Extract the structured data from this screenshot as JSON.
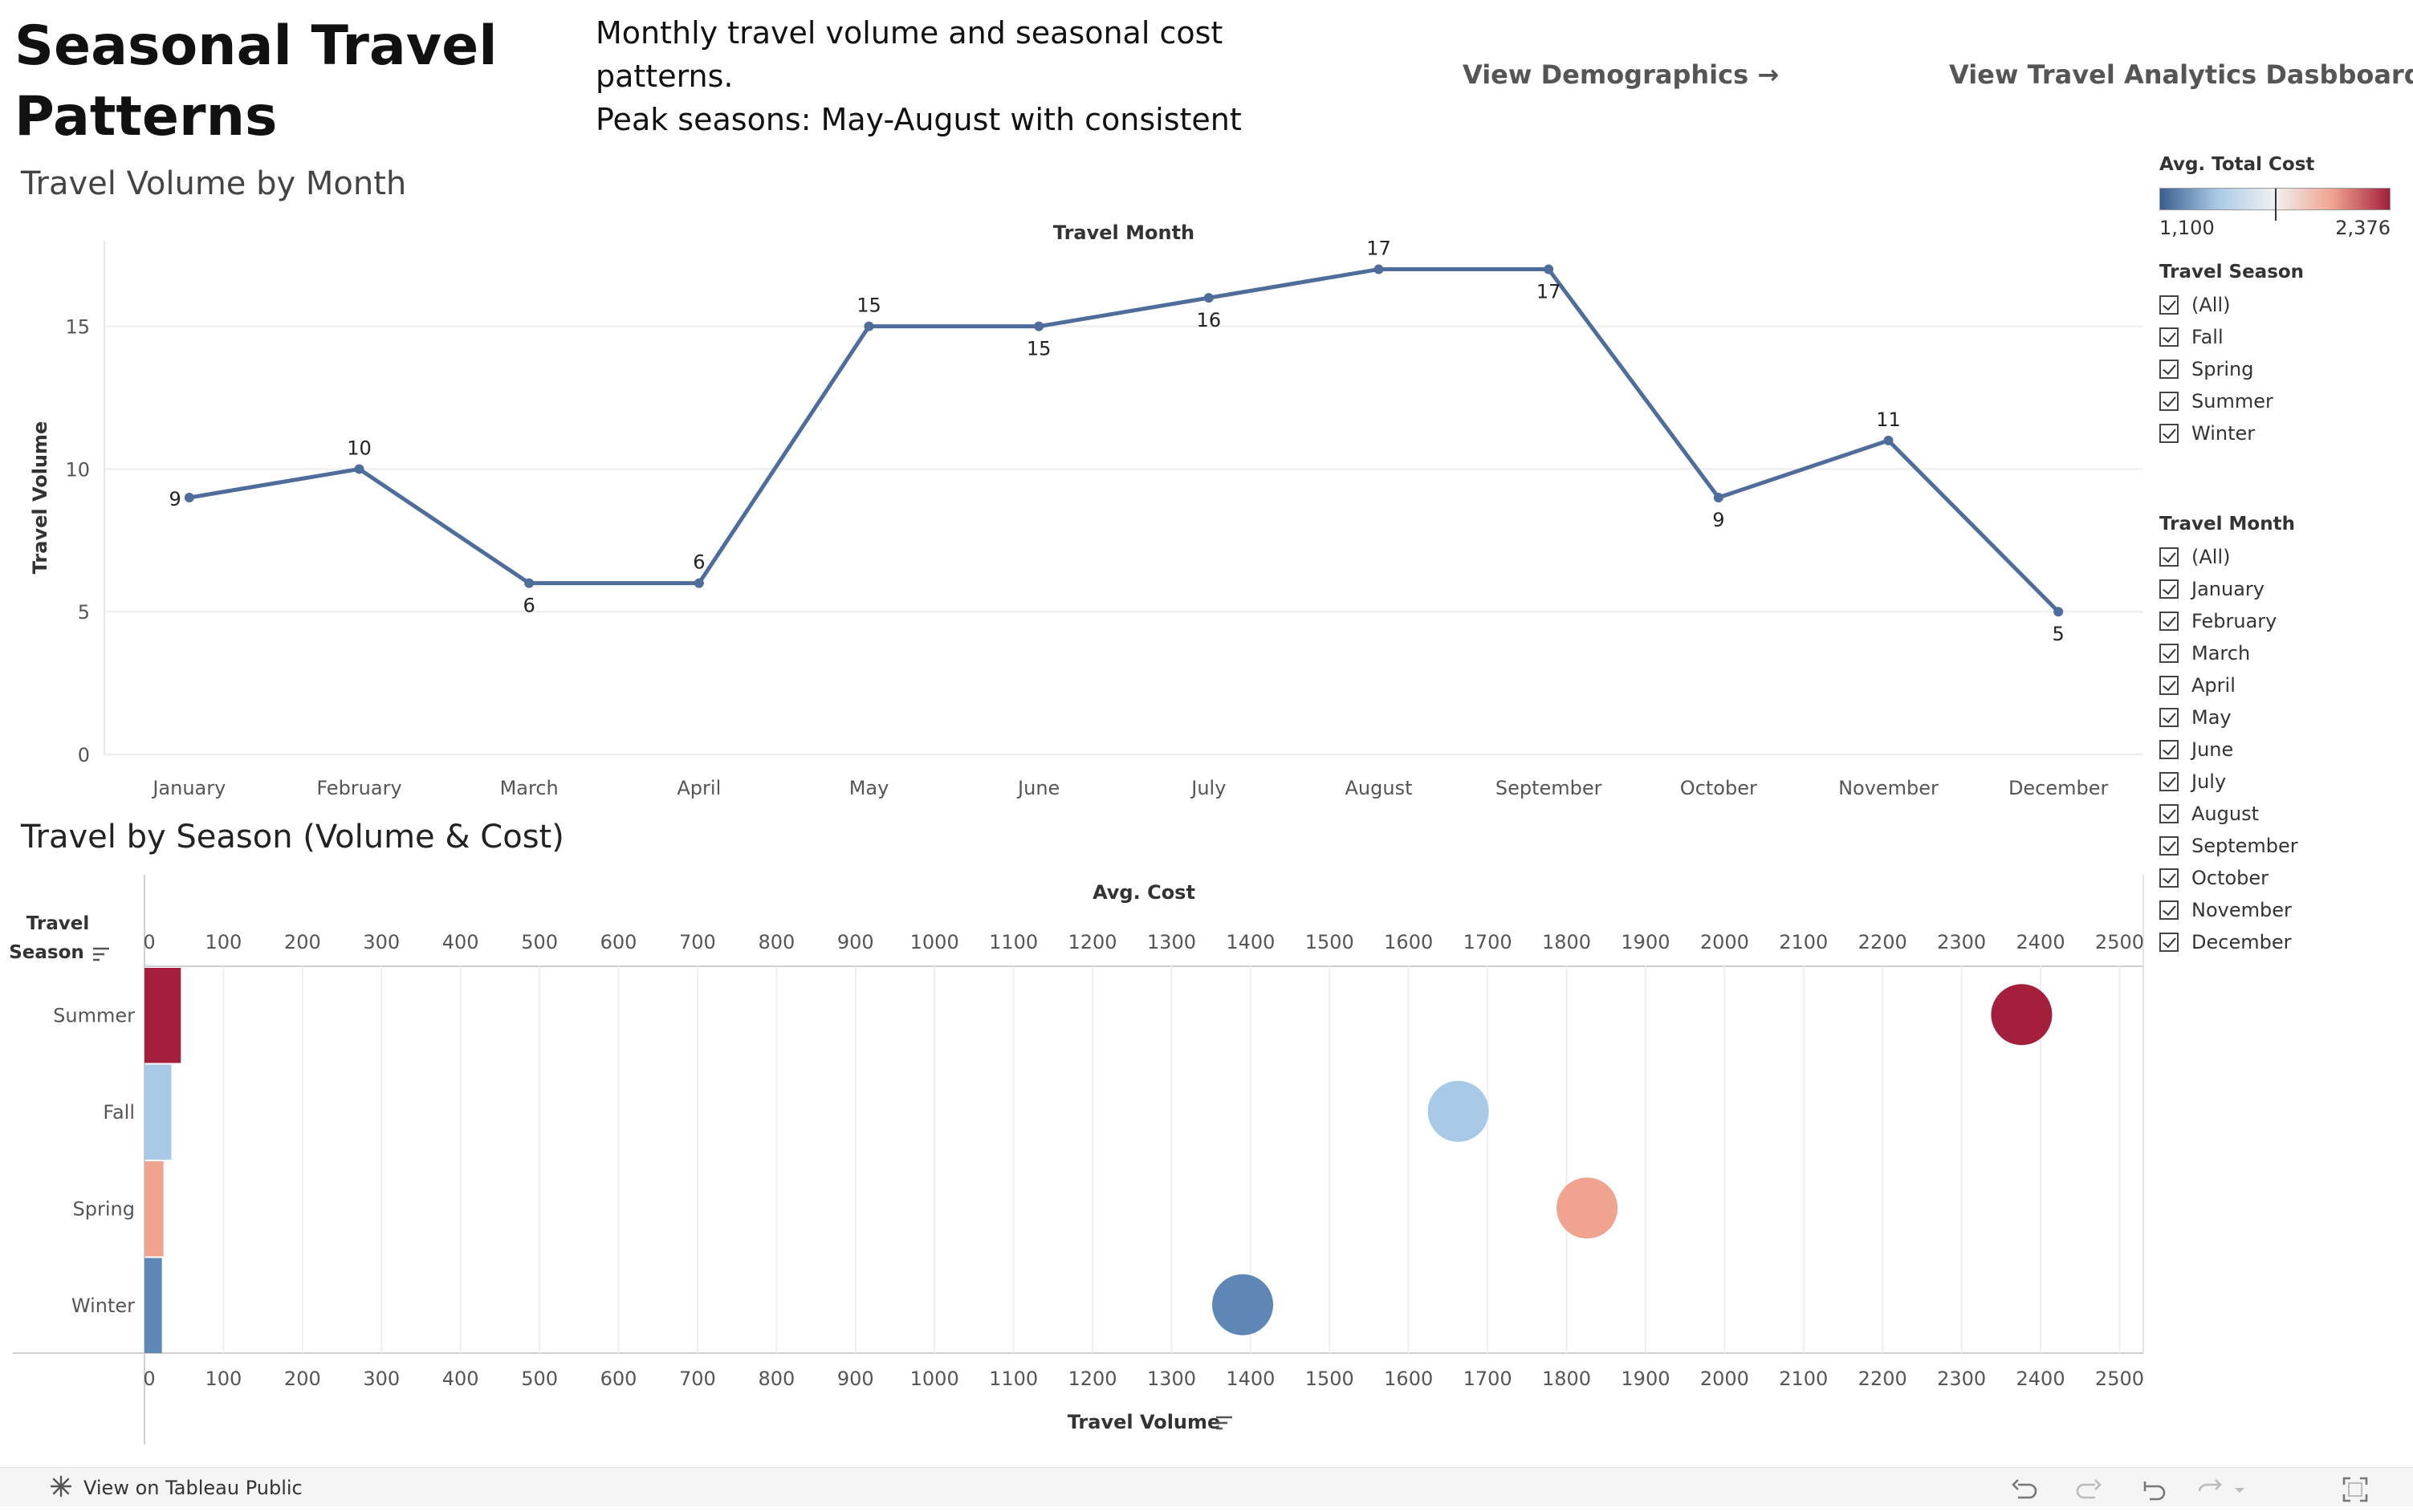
{
  "header": {
    "title": "Seasonal Travel Patterns",
    "description": "Monthly travel volume and seasonal cost patterns.\nPeak seasons: May-August with consistent",
    "links": [
      "View Demographics →",
      "View Travel Analytics Dasbboard →"
    ]
  },
  "sections": {
    "line_title": "Travel Volume by Month",
    "bubble_title": "Travel by Season (Volume & Cost)"
  },
  "chart_data": [
    {
      "type": "line",
      "top_axis_label": "Travel Month",
      "ylabel": "Travel Volume",
      "x": [
        "January",
        "February",
        "March",
        "April",
        "May",
        "June",
        "July",
        "August",
        "September",
        "October",
        "November",
        "December"
      ],
      "values": [
        9,
        10,
        6,
        6,
        15,
        15,
        16,
        17,
        17,
        9,
        11,
        5
      ],
      "yticks": [
        0,
        5,
        10,
        15
      ],
      "ylim": [
        0,
        18
      ],
      "line_color": "#4e6d9a",
      "grid": true
    },
    {
      "type": "scatter",
      "row_header": "Travel Season",
      "top_axis_label": "Avg. Cost",
      "xlabel": "Travel Volume",
      "categories": [
        "Summer",
        "Fall",
        "Spring",
        "Winter"
      ],
      "volume": [
        46,
        34,
        24,
        22
      ],
      "avg_cost": [
        2376,
        1663,
        1826,
        1390
      ],
      "colors": [
        "#a31f3c",
        "#a9cae6",
        "#f0a38f",
        "#5f87b6"
      ],
      "xticks": [
        0,
        100,
        200,
        300,
        400,
        500,
        600,
        700,
        800,
        900,
        1000,
        1100,
        1200,
        1300,
        1400,
        1500,
        1600,
        1700,
        1800,
        1900,
        2000,
        2100,
        2200,
        2300,
        2400,
        2500
      ],
      "xlim": [
        0,
        2530
      ]
    }
  ],
  "legend": {
    "title": "Avg. Total Cost",
    "min_label": "1,100",
    "max_label": "2,376",
    "min_value": 1100,
    "max_value": 2376,
    "marker_value": 1740,
    "colors": [
      "#3a5e90",
      "#a9cae6",
      "#f1f1f1",
      "#f0a38f",
      "#a31f3c"
    ]
  },
  "filters": [
    {
      "title": "Travel Season",
      "items": [
        "(All)",
        "Fall",
        "Spring",
        "Summer",
        "Winter"
      ]
    },
    {
      "title": "Travel Month",
      "items": [
        "(All)",
        "January",
        "February",
        "March",
        "April",
        "May",
        "June",
        "July",
        "August",
        "September",
        "October",
        "November",
        "December"
      ]
    }
  ],
  "footer": {
    "tableau_link": "View on Tableau Public",
    "icons": [
      "undo-icon",
      "redo-icon",
      "revert-icon",
      "refresh-icon",
      "fullscreen-icon"
    ]
  }
}
